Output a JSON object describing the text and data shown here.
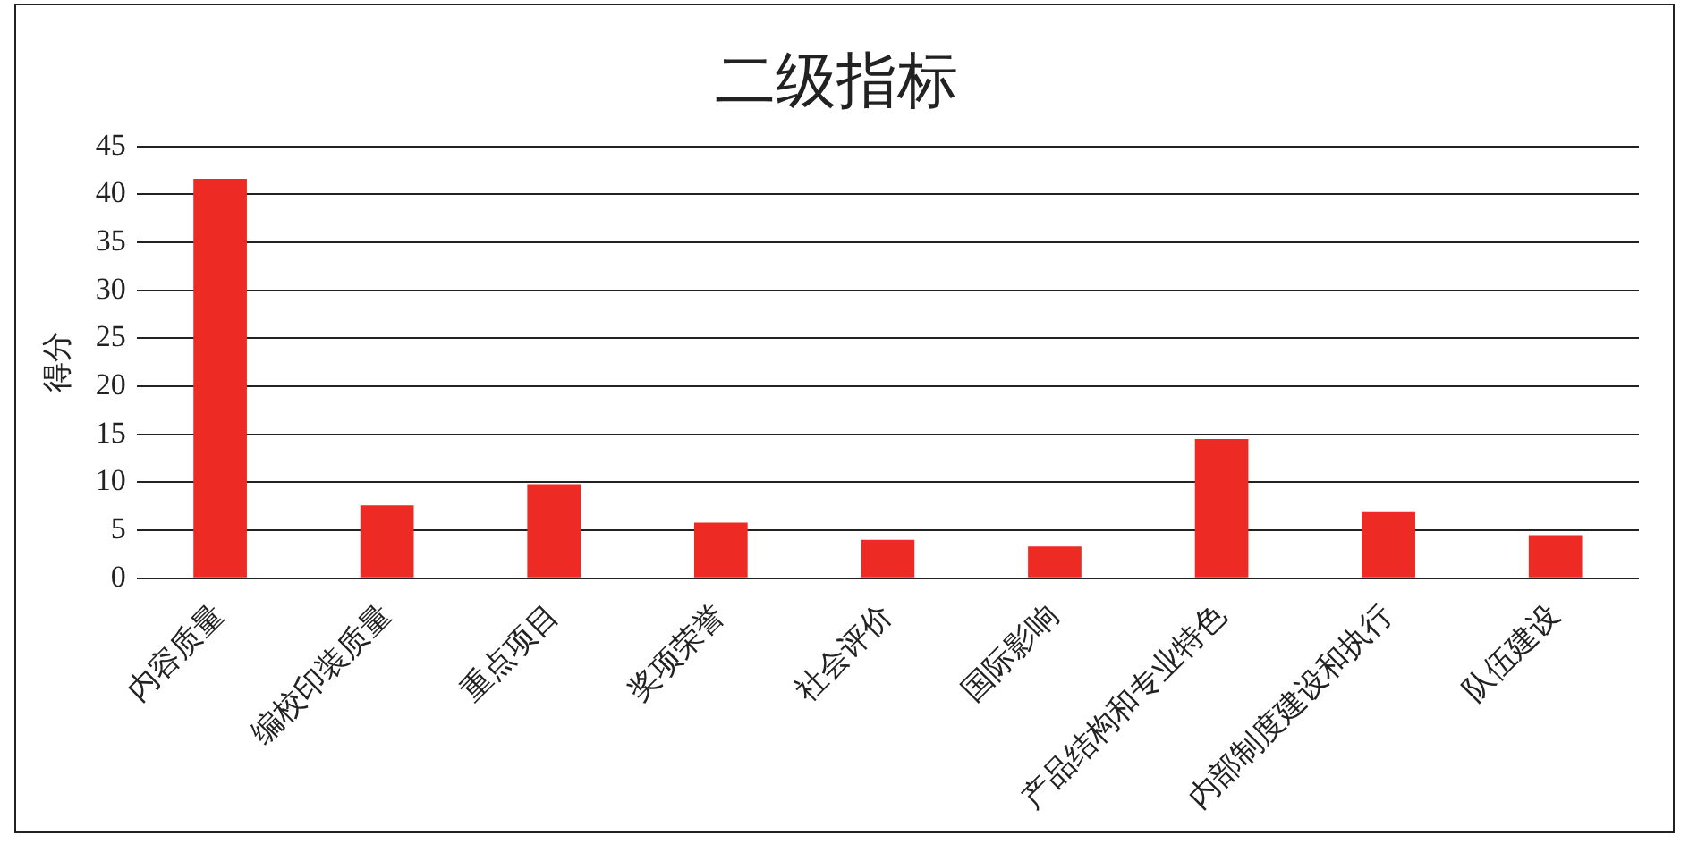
{
  "chart_data": {
    "type": "bar",
    "title": "二级指标",
    "ylabel": "得分",
    "categories": [
      "内容质量",
      "编校印装质量",
      "重点项目",
      "奖项荣誉",
      "社会评价",
      "国际影响",
      "产品结构和专业特色",
      "内部制度建设和执行",
      "队伍建设"
    ],
    "values": [
      41.6,
      7.6,
      9.8,
      5.8,
      4.0,
      3.3,
      14.5,
      6.9,
      4.5
    ],
    "color": "#ee2a24",
    "ylim": [
      0,
      45
    ],
    "yticks": [
      0,
      5,
      10,
      15,
      20,
      25,
      30,
      35,
      40,
      45
    ],
    "grid": "y"
  }
}
